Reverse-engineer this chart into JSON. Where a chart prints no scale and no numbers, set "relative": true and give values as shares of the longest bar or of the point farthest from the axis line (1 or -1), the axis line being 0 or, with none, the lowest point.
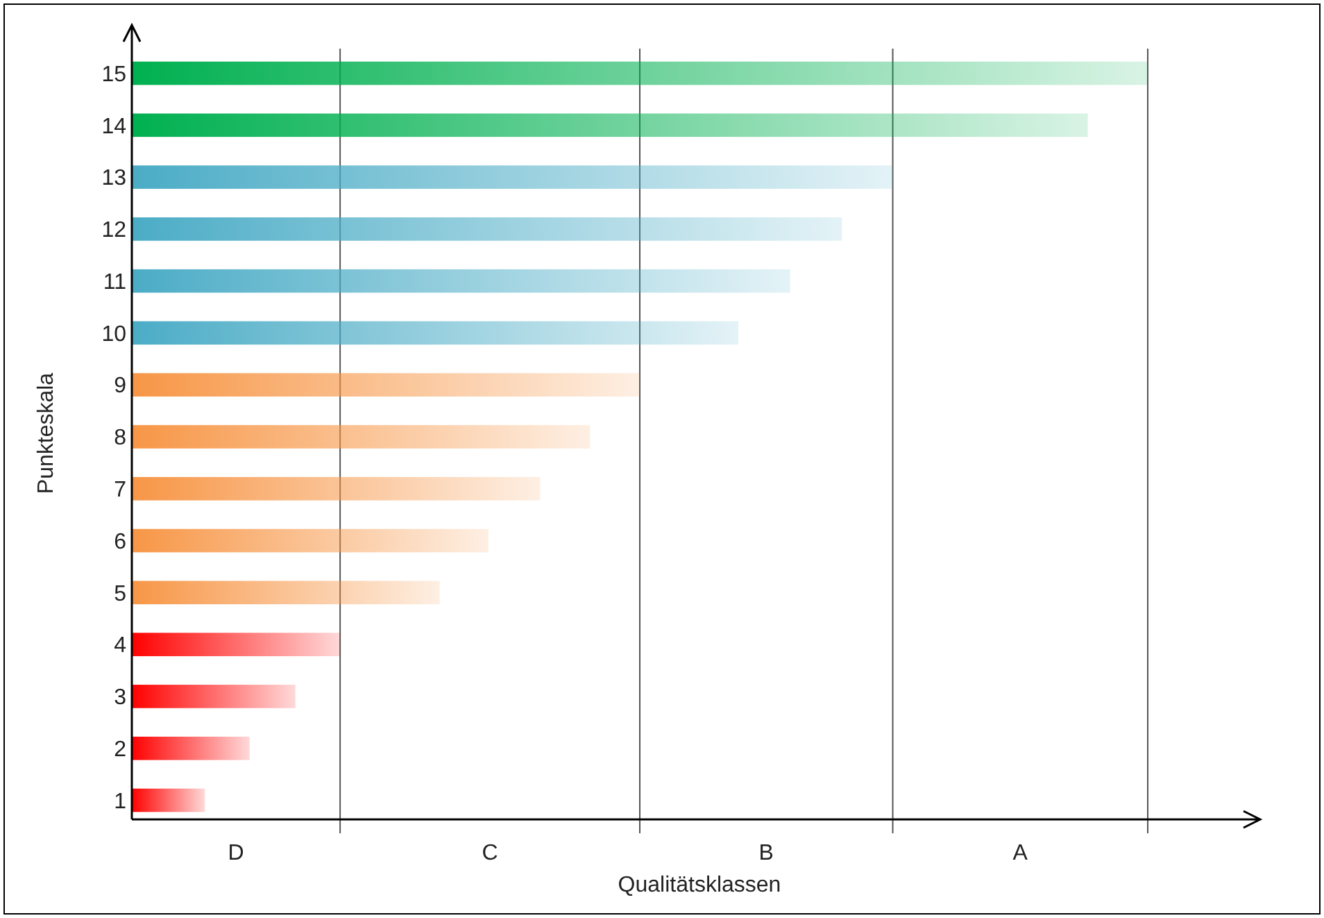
{
  "chart_data": {
    "type": "bar",
    "orientation": "horizontal",
    "relative": true,
    "xlabel": "Qualitätsklassen",
    "ylabel": "Punkteskala",
    "categories": [
      "15",
      "14",
      "13",
      "12",
      "11",
      "10",
      "9",
      "8",
      "7",
      "6",
      "5",
      "4",
      "3",
      "2",
      "1"
    ],
    "values": [
      1,
      0.941,
      0.749,
      0.699,
      0.648,
      0.597,
      0.5,
      0.451,
      0.402,
      0.351,
      0.303,
      0.205,
      0.161,
      0.116,
      0.072
    ],
    "colors": [
      "#00b050",
      "#00b050",
      "#4bacc6",
      "#4bacc6",
      "#4bacc6",
      "#4bacc6",
      "#f79646",
      "#f79646",
      "#f79646",
      "#f79646",
      "#f79646",
      "#ff0000",
      "#ff0000",
      "#ff0000",
      "#ff0000"
    ],
    "ref_lines": [
      {
        "axis": "x",
        "value": 0.205,
        "color": "#555555"
      },
      {
        "axis": "x",
        "value": 0.5,
        "color": "#555555"
      },
      {
        "axis": "x",
        "value": 0.749,
        "color": "#555555"
      },
      {
        "axis": "x",
        "value": 1,
        "color": "#555555"
      }
    ],
    "annotations": [
      "D",
      "C",
      "B",
      "A"
    ]
  }
}
